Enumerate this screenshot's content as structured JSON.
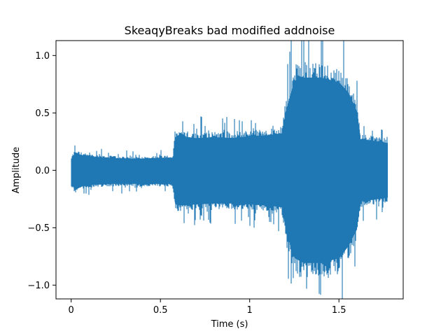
{
  "chart_data": {
    "type": "line",
    "title": "SkeaqyBreaks bad modified addnoise",
    "xlabel": "Time (s)",
    "ylabel": "Amplitude",
    "xlim": [
      -0.085,
      1.86
    ],
    "ylim": [
      -1.12,
      1.13
    ],
    "xticks": [
      0,
      0.5,
      1,
      1.5
    ],
    "xtick_labels": [
      "0",
      "0.5",
      "1",
      "1.5"
    ],
    "yticks": [
      -1.0,
      -0.5,
      0.0,
      0.5,
      1.0
    ],
    "ytick_labels": [
      "−1.0",
      "−0.5",
      "0.0",
      "0.5",
      "1.0"
    ],
    "grid": false,
    "series": [
      {
        "color": "#1f77b4",
        "envelope": {
          "t": [
            0.0,
            0.02,
            0.05,
            0.1,
            0.2,
            0.3,
            0.4,
            0.5,
            0.57,
            0.58,
            0.6,
            0.7,
            0.8,
            0.9,
            1.0,
            1.1,
            1.18,
            1.2,
            1.23,
            1.25,
            1.3,
            1.4,
            1.5,
            1.55,
            1.6,
            1.62,
            1.7,
            1.77
          ],
          "upper": [
            0.12,
            0.18,
            0.16,
            0.14,
            0.13,
            0.12,
            0.12,
            0.13,
            0.13,
            0.34,
            0.35,
            0.33,
            0.34,
            0.33,
            0.35,
            0.36,
            0.38,
            0.6,
            0.8,
            0.92,
            0.95,
            0.95,
            0.9,
            0.8,
            0.6,
            0.32,
            0.3,
            0.28
          ],
          "lower": [
            -0.14,
            -0.2,
            -0.17,
            -0.15,
            -0.14,
            -0.14,
            -0.14,
            -0.14,
            -0.14,
            -0.34,
            -0.36,
            -0.35,
            -0.34,
            -0.34,
            -0.35,
            -0.36,
            -0.38,
            -0.6,
            -0.8,
            -0.9,
            -0.95,
            -0.95,
            -0.9,
            -0.78,
            -0.6,
            -0.32,
            -0.3,
            -0.28
          ]
        }
      }
    ]
  }
}
